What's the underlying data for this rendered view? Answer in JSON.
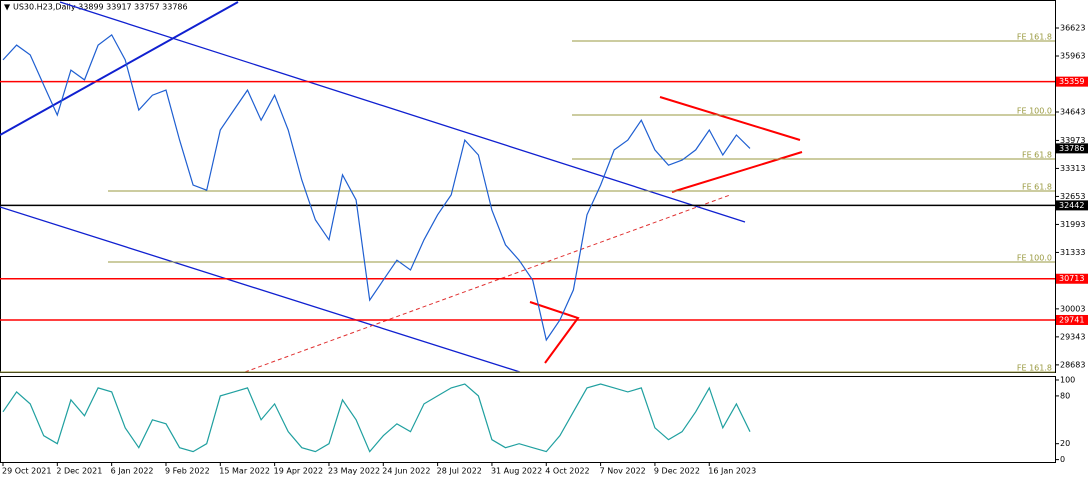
{
  "header": "US30.H23,Daily  33899 33917 33757 33786",
  "chart_data": [
    {
      "type": "line",
      "categories": [
        "29 Oct 2021",
        null,
        null,
        null,
        "2 Dec 2021",
        null,
        null,
        null,
        "6 Jan 2022",
        null,
        null,
        null,
        "9 Feb 2022",
        null,
        null,
        null,
        "15 Mar 2022",
        null,
        null,
        null,
        "19 Apr 2022",
        null,
        null,
        null,
        "23 May 2022",
        null,
        null,
        null,
        "24 Jun 2022",
        null,
        null,
        null,
        "28 Jul 2022",
        null,
        null,
        null,
        "31 Aug 2022",
        null,
        null,
        null,
        "4 Oct 2022",
        null,
        null,
        null,
        "7 Nov 2022",
        null,
        null,
        null,
        "9 Dec 2022",
        null,
        null,
        null,
        "16 Jan 2023",
        null,
        null,
        null
      ],
      "series": [
        {
          "color": "#1f5fd1",
          "values": [
            35870,
            36220,
            35990,
            35280,
            34570,
            35630,
            35400,
            36220,
            36460,
            35870,
            34690,
            35040,
            35160,
            33980,
            32920,
            32800,
            34220,
            34690,
            35160,
            34450,
            35040,
            34220,
            33040,
            32100,
            31630,
            33160,
            32570,
            30210,
            30680,
            31150,
            30920,
            31630,
            32220,
            32690,
            33980,
            33630,
            32330,
            31510,
            31150,
            30680,
            29270,
            29740,
            30450,
            32220,
            32920,
            33750,
            33980,
            34450,
            33750,
            33390,
            33510,
            33750,
            34220,
            33630,
            34100,
            33786
          ]
        }
      ],
      "ylim": [
        28515,
        37283
      ],
      "yticks": [
        28683,
        29343,
        30003,
        31333,
        31993,
        32653,
        33313,
        33973,
        34643,
        35963,
        36623
      ],
      "levels": [
        {
          "value": 35359,
          "color": "#ff0000",
          "line": true
        },
        {
          "value": 33786,
          "color": "#000000",
          "line": false
        },
        {
          "value": 32442,
          "color": "#000000",
          "line": true
        },
        {
          "value": 30713,
          "color": "#ff0000",
          "line": true
        },
        {
          "value": 29741,
          "color": "#ff0000",
          "line": true
        }
      ],
      "fibo": [
        {
          "label": "FE 161.8",
          "value": 36317
        },
        {
          "label": "FE 100.0",
          "value": 34572
        },
        {
          "label": "FE 61.8",
          "value": 33535
        },
        {
          "label": "FE 61.8",
          "value": 32781
        },
        {
          "label": "FE 100.0",
          "value": 31108
        },
        {
          "label": "FE 161.8",
          "value": 28515
        }
      ],
      "fibo_color": "#9a9a40"
    },
    {
      "type": "line",
      "series": [
        {
          "color": "#20a0a0",
          "values": [
            60,
            85,
            70,
            30,
            20,
            75,
            55,
            90,
            85,
            40,
            15,
            50,
            45,
            15,
            10,
            20,
            80,
            85,
            90,
            50,
            70,
            35,
            15,
            10,
            20,
            75,
            50,
            10,
            30,
            45,
            35,
            70,
            80,
            90,
            95,
            80,
            25,
            15,
            20,
            15,
            10,
            30,
            60,
            90,
            95,
            90,
            85,
            90,
            40,
            25,
            35,
            60,
            90,
            40,
            70,
            35
          ]
        }
      ],
      "ylim": [
        -3,
        105
      ],
      "yticks": [
        0,
        20,
        80,
        100
      ]
    }
  ]
}
